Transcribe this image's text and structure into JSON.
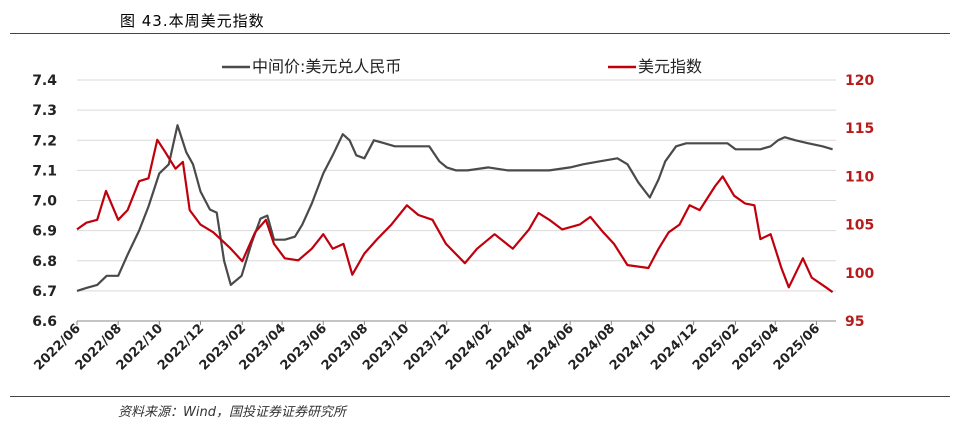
{
  "figure": {
    "title": "图 43.本周美元指数",
    "source": "资料来源：Wind，国投证券证券研究所"
  },
  "chart_data": {
    "type": "line",
    "legend_position": "top-center",
    "grid": "horizontal",
    "y_left": {
      "ticks": [
        "7.4",
        "7.3",
        "7.2",
        "7.1",
        "7.0",
        "6.9",
        "6.8",
        "6.7",
        "6.6"
      ],
      "ylim": [
        6.6,
        7.4
      ],
      "color": "#4a4a4a"
    },
    "y_right": {
      "ticks": [
        "120",
        "115",
        "110",
        "105",
        "100",
        "95"
      ],
      "ylim": [
        95,
        120
      ],
      "color": "#b71c1c"
    },
    "x_ticks": [
      "2022/06",
      "2022/08",
      "2022/10",
      "2022/12",
      "2023/02",
      "2023/04",
      "2023/06",
      "2023/08",
      "2023/10",
      "2023/12",
      "2024/02",
      "2024/04",
      "2024/06",
      "2024/08",
      "2024/10",
      "2024/12",
      "2025/02",
      "2025/04",
      "2025/06"
    ],
    "series": [
      {
        "name": "中间价:美元兑人民币",
        "axis": "left",
        "color": "#4a4a4a",
        "points": [
          [
            "2022-06-01",
            6.7
          ],
          [
            "2022-06-15",
            6.71
          ],
          [
            "2022-07-01",
            6.72
          ],
          [
            "2022-07-15",
            6.75
          ],
          [
            "2022-08-01",
            6.75
          ],
          [
            "2022-08-15",
            6.82
          ],
          [
            "2022-09-01",
            6.9
          ],
          [
            "2022-09-15",
            6.98
          ],
          [
            "2022-10-01",
            7.09
          ],
          [
            "2022-10-15",
            7.12
          ],
          [
            "2022-10-28",
            7.25
          ],
          [
            "2022-11-10",
            7.16
          ],
          [
            "2022-11-20",
            7.12
          ],
          [
            "2022-12-01",
            7.03
          ],
          [
            "2022-12-15",
            6.97
          ],
          [
            "2022-12-25",
            6.96
          ],
          [
            "2023-01-05",
            6.8
          ],
          [
            "2023-01-15",
            6.72
          ],
          [
            "2023-01-31",
            6.75
          ],
          [
            "2023-02-15",
            6.86
          ],
          [
            "2023-02-28",
            6.94
          ],
          [
            "2023-03-10",
            6.95
          ],
          [
            "2023-03-20",
            6.87
          ],
          [
            "2023-04-05",
            6.87
          ],
          [
            "2023-04-20",
            6.88
          ],
          [
            "2023-05-01",
            6.92
          ],
          [
            "2023-05-15",
            6.99
          ],
          [
            "2023-06-01",
            7.09
          ],
          [
            "2023-06-15",
            7.15
          ],
          [
            "2023-06-30",
            7.22
          ],
          [
            "2023-07-10",
            7.2
          ],
          [
            "2023-07-20",
            7.15
          ],
          [
            "2023-08-01",
            7.14
          ],
          [
            "2023-08-15",
            7.2
          ],
          [
            "2023-08-31",
            7.19
          ],
          [
            "2023-09-15",
            7.18
          ],
          [
            "2023-10-15",
            7.18
          ],
          [
            "2023-11-05",
            7.18
          ],
          [
            "2023-11-20",
            7.13
          ],
          [
            "2023-12-01",
            7.11
          ],
          [
            "2023-12-15",
            7.1
          ],
          [
            "2024-01-01",
            7.1
          ],
          [
            "2024-02-01",
            7.11
          ],
          [
            "2024-03-01",
            7.1
          ],
          [
            "2024-04-01",
            7.1
          ],
          [
            "2024-05-01",
            7.1
          ],
          [
            "2024-06-01",
            7.11
          ],
          [
            "2024-06-20",
            7.12
          ],
          [
            "2024-07-15",
            7.13
          ],
          [
            "2024-08-10",
            7.14
          ],
          [
            "2024-08-25",
            7.12
          ],
          [
            "2024-09-10",
            7.06
          ],
          [
            "2024-09-27",
            7.01
          ],
          [
            "2024-10-10",
            7.07
          ],
          [
            "2024-10-20",
            7.13
          ],
          [
            "2024-11-05",
            7.18
          ],
          [
            "2024-11-20",
            7.19
          ],
          [
            "2024-12-15",
            7.19
          ],
          [
            "2025-01-05",
            7.19
          ],
          [
            "2025-01-20",
            7.19
          ],
          [
            "2025-02-01",
            7.17
          ],
          [
            "2025-02-20",
            7.17
          ],
          [
            "2025-03-10",
            7.17
          ],
          [
            "2025-03-25",
            7.18
          ],
          [
            "2025-04-05",
            7.2
          ],
          [
            "2025-04-15",
            7.21
          ],
          [
            "2025-05-01",
            7.2
          ],
          [
            "2025-05-20",
            7.19
          ],
          [
            "2025-06-10",
            7.18
          ],
          [
            "2025-06-25",
            7.17
          ]
        ]
      },
      {
        "name": "美元指数",
        "axis": "right",
        "color": "#c0000c",
        "points": [
          [
            "2022-06-01",
            104.5
          ],
          [
            "2022-06-15",
            105.2
          ],
          [
            "2022-07-01",
            105.5
          ],
          [
            "2022-07-14",
            108.5
          ],
          [
            "2022-08-01",
            105.5
          ],
          [
            "2022-08-15",
            106.5
          ],
          [
            "2022-09-01",
            109.5
          ],
          [
            "2022-09-15",
            109.8
          ],
          [
            "2022-09-28",
            113.8
          ],
          [
            "2022-10-10",
            112.5
          ],
          [
            "2022-10-25",
            110.8
          ],
          [
            "2022-11-05",
            111.5
          ],
          [
            "2022-11-15",
            106.5
          ],
          [
            "2022-12-01",
            105.0
          ],
          [
            "2022-12-20",
            104.2
          ],
          [
            "2023-01-15",
            102.5
          ],
          [
            "2023-02-01",
            101.2
          ],
          [
            "2023-02-20",
            104.2
          ],
          [
            "2023-03-08",
            105.5
          ],
          [
            "2023-03-20",
            103.0
          ],
          [
            "2023-04-05",
            101.5
          ],
          [
            "2023-04-25",
            101.3
          ],
          [
            "2023-05-15",
            102.5
          ],
          [
            "2023-06-01",
            104.0
          ],
          [
            "2023-06-15",
            102.5
          ],
          [
            "2023-07-01",
            103.0
          ],
          [
            "2023-07-14",
            99.8
          ],
          [
            "2023-08-01",
            102.0
          ],
          [
            "2023-08-20",
            103.5
          ],
          [
            "2023-09-10",
            105.0
          ],
          [
            "2023-10-03",
            107.0
          ],
          [
            "2023-10-20",
            106.0
          ],
          [
            "2023-11-10",
            105.5
          ],
          [
            "2023-11-30",
            103.0
          ],
          [
            "2023-12-28",
            101.0
          ],
          [
            "2024-01-15",
            102.5
          ],
          [
            "2024-02-10",
            104.0
          ],
          [
            "2024-03-08",
            102.5
          ],
          [
            "2024-04-01",
            104.5
          ],
          [
            "2024-04-15",
            106.2
          ],
          [
            "2024-05-01",
            105.5
          ],
          [
            "2024-05-20",
            104.5
          ],
          [
            "2024-06-15",
            105.0
          ],
          [
            "2024-07-01",
            105.8
          ],
          [
            "2024-07-20",
            104.2
          ],
          [
            "2024-08-05",
            103.0
          ],
          [
            "2024-08-25",
            100.8
          ],
          [
            "2024-09-25",
            100.5
          ],
          [
            "2024-10-10",
            102.5
          ],
          [
            "2024-10-25",
            104.2
          ],
          [
            "2024-11-10",
            105.0
          ],
          [
            "2024-11-25",
            107.0
          ],
          [
            "2024-12-10",
            106.5
          ],
          [
            "2025-01-02",
            109.0
          ],
          [
            "2025-01-13",
            110.0
          ],
          [
            "2025-01-30",
            108.0
          ],
          [
            "2025-02-15",
            107.2
          ],
          [
            "2025-03-01",
            107.0
          ],
          [
            "2025-03-10",
            103.5
          ],
          [
            "2025-03-25",
            104.0
          ],
          [
            "2025-04-10",
            100.5
          ],
          [
            "2025-04-21",
            98.5
          ],
          [
            "2025-05-12",
            101.5
          ],
          [
            "2025-05-25",
            99.5
          ],
          [
            "2025-06-15",
            98.5
          ],
          [
            "2025-06-25",
            98.0
          ]
        ]
      }
    ]
  }
}
